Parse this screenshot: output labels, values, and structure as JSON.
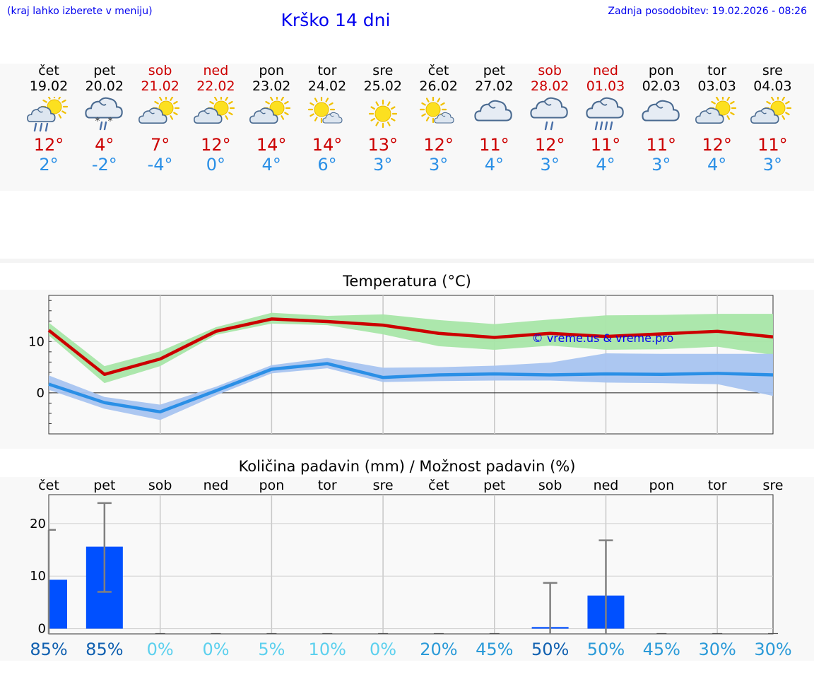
{
  "header": {
    "hint": "(kraj lahko izberete v meniju)",
    "title": "Krško 14 dni",
    "updated": "Zadnja posodobitev: 19.02.2026 - 08:26"
  },
  "days": [
    {
      "name": "čet",
      "date": "19.02",
      "weekend": false,
      "icon": "sun-cloud-rain",
      "max": "12°",
      "min": "2°"
    },
    {
      "name": "pet",
      "date": "20.02",
      "weekend": false,
      "icon": "cloud-sleet",
      "max": "4°",
      "min": "-2°"
    },
    {
      "name": "sob",
      "date": "21.02",
      "weekend": true,
      "icon": "sun-cloud",
      "max": "7°",
      "min": "-4°"
    },
    {
      "name": "ned",
      "date": "22.02",
      "weekend": true,
      "icon": "sun-cloud",
      "max": "12°",
      "min": "0°"
    },
    {
      "name": "pon",
      "date": "23.02",
      "weekend": false,
      "icon": "sun-cloud",
      "max": "14°",
      "min": "4°"
    },
    {
      "name": "tor",
      "date": "24.02",
      "weekend": false,
      "icon": "sun-small-cloud",
      "max": "14°",
      "min": "6°"
    },
    {
      "name": "sre",
      "date": "25.02",
      "weekend": false,
      "icon": "sun",
      "max": "13°",
      "min": "3°"
    },
    {
      "name": "čet",
      "date": "26.02",
      "weekend": false,
      "icon": "sun-small-cloud",
      "max": "12°",
      "min": "3°"
    },
    {
      "name": "pet",
      "date": "27.02",
      "weekend": false,
      "icon": "cloud",
      "max": "11°",
      "min": "4°"
    },
    {
      "name": "sob",
      "date": "28.02",
      "weekend": true,
      "icon": "cloud-rain",
      "max": "12°",
      "min": "3°"
    },
    {
      "name": "ned",
      "date": "01.03",
      "weekend": true,
      "icon": "cloud-rain-heavy",
      "max": "11°",
      "min": "4°"
    },
    {
      "name": "pon",
      "date": "02.03",
      "weekend": false,
      "icon": "cloud",
      "max": "11°",
      "min": "3°"
    },
    {
      "name": "tor",
      "date": "03.03",
      "weekend": false,
      "icon": "sun-cloud",
      "max": "12°",
      "min": "4°"
    },
    {
      "name": "sre",
      "date": "04.03",
      "weekend": false,
      "icon": "sun-cloud",
      "max": "11°",
      "min": "3°"
    }
  ],
  "colors": {
    "max": "#cc0000",
    "min": "#2a8fe6",
    "maxBand": "#a8e6a8",
    "minBand": "#a8c4f0",
    "bar": "#0050ff",
    "err": "#808080"
  },
  "chart_data": [
    {
      "type": "line",
      "title": "Temperatura (°C)",
      "watermark": "© vreme.us & vreme.pro",
      "categories": [
        "19.02",
        "20.02",
        "21.02",
        "22.02",
        "23.02",
        "24.02",
        "25.02",
        "26.02",
        "27.02",
        "28.02",
        "01.03",
        "02.03",
        "03.03",
        "04.03"
      ],
      "ylim": [
        -8,
        19
      ],
      "yticks": [
        0,
        10
      ],
      "series": [
        {
          "name": "max",
          "values": [
            12.2,
            3.6,
            6.6,
            12.0,
            14.4,
            13.9,
            13.2,
            11.6,
            10.8,
            11.6,
            11.0,
            11.5,
            12.0,
            10.9
          ],
          "band_low": [
            11.2,
            1.9,
            5.2,
            11.3,
            13.5,
            13.2,
            11.4,
            9.1,
            8.4,
            9.2,
            8.4,
            8.5,
            9.0,
            7.4
          ],
          "band_high": [
            13.7,
            5.2,
            8.1,
            12.8,
            15.6,
            15.0,
            15.3,
            14.2,
            13.4,
            14.3,
            15.1,
            15.2,
            15.4,
            15.4
          ]
        },
        {
          "name": "min",
          "values": [
            1.7,
            -1.9,
            -3.7,
            0.4,
            4.6,
            5.7,
            3.0,
            3.5,
            3.7,
            3.5,
            3.7,
            3.6,
            3.8,
            3.5
          ],
          "band_low": [
            0.6,
            -3.1,
            -5.3,
            -0.5,
            3.8,
            4.8,
            2.1,
            2.3,
            2.4,
            2.4,
            2.0,
            1.9,
            1.7,
            -0.6
          ],
          "band_high": [
            3.4,
            -0.8,
            -2.3,
            1.2,
            5.4,
            6.8,
            4.9,
            5.0,
            5.3,
            5.9,
            7.7,
            7.6,
            7.6,
            7.6
          ]
        }
      ]
    },
    {
      "type": "bar",
      "title": "Količina padavin (mm) / Možnost padavin (%)",
      "categories": [
        "čet",
        "pet",
        "sob",
        "ned",
        "pon",
        "tor",
        "sre",
        "čet",
        "pet",
        "sob",
        "ned",
        "pon",
        "tor",
        "sre"
      ],
      "values": [
        9.3,
        15.6,
        0,
        0,
        0,
        0,
        0,
        0,
        0,
        0.3,
        6.3,
        0,
        0,
        0
      ],
      "error_high": [
        18.8,
        23.9,
        0,
        0,
        0,
        0,
        0,
        0,
        0,
        8.7,
        16.8,
        0,
        0,
        0
      ],
      "error_low": [
        0,
        7.0,
        0,
        0,
        0,
        0,
        0,
        0,
        0,
        0,
        0,
        0,
        0,
        0
      ],
      "ylim": [
        -1,
        25.5
      ],
      "yticks": [
        0,
        10,
        20
      ],
      "probability": [
        "85%",
        "85%",
        "0%",
        "0%",
        "5%",
        "10%",
        "0%",
        "20%",
        "45%",
        "50%",
        "50%",
        "45%",
        "30%",
        "30%"
      ],
      "probability_colors": [
        "#1060b0",
        "#1060b0",
        "#5cd0ee",
        "#5cd0ee",
        "#5cd0ee",
        "#5cd0ee",
        "#5cd0ee",
        "#2a9ad8",
        "#2a9ad8",
        "#1060b0",
        "#2a9ad8",
        "#2a9ad8",
        "#2a9ad8",
        "#2a9ad8"
      ]
    }
  ]
}
